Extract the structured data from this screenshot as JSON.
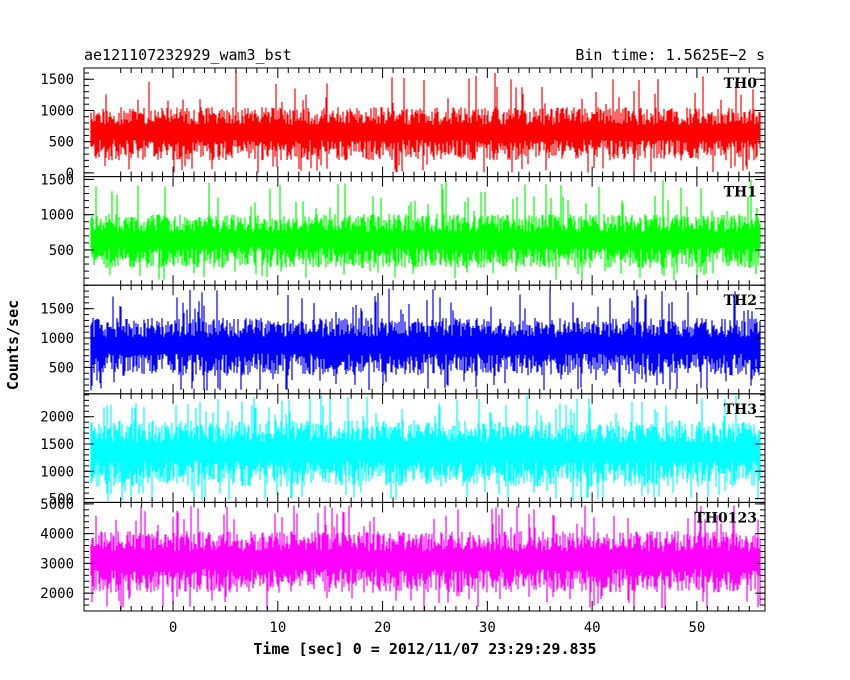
{
  "header": {
    "title": "ae121107232929_wam3_bst",
    "bin_time": "Bin time: 1.5625E−2 s"
  },
  "axes": {
    "xlabel": "Time [sec] 0 = 2012/11/07 23:29:29.835",
    "ylabel": "Counts/sec"
  },
  "chart_data": {
    "type": "line",
    "title": "ae121107232929_wam3_bst",
    "subtitle": "Bin time: 1.5625E−2 s",
    "xlabel": "Time [sec] 0 = 2012/11/07 23:29:29.835",
    "ylabel": "Counts/sec",
    "xlim": [
      -8.5,
      56.5
    ],
    "data_x_range": [
      -7.8,
      56.0
    ],
    "xticks": [
      0,
      10,
      20,
      30,
      40,
      50
    ],
    "panels": [
      {
        "name": "TH0",
        "color": "#ff0000",
        "ylim": [
          -60,
          1680
        ],
        "yticks": [
          0,
          500,
          1000,
          1500
        ],
        "typical_range": [
          150,
          1100
        ],
        "max_peak": 1650,
        "min_dip": 0
      },
      {
        "name": "TH1",
        "color": "#00ff00",
        "ylim": [
          0,
          1540
        ],
        "yticks": [
          500,
          1000,
          1500
        ],
        "typical_range": [
          200,
          1050
        ],
        "max_peak": 1500,
        "min_dip": 60
      },
      {
        "name": "TH2",
        "color": "#0000ff",
        "ylim": [
          50,
          1900
        ],
        "yticks": [
          500,
          1000,
          1500
        ],
        "typical_range": [
          300,
          1400
        ],
        "max_peak": 1850,
        "min_dip": 100
      },
      {
        "name": "TH3",
        "color": "#00ffff",
        "ylim": [
          430,
          2420
        ],
        "yticks": [
          500,
          1000,
          1500,
          2000
        ],
        "typical_range": [
          650,
          2000
        ],
        "max_peak": 2400,
        "min_dip": 450
      },
      {
        "name": "TH0123",
        "color": "#ff00ff",
        "ylim": [
          1400,
          5050
        ],
        "yticks": [
          2000,
          3000,
          4000,
          5000
        ],
        "typical_range": [
          1900,
          4200
        ],
        "max_peak": 4950,
        "min_dip": 1400
      }
    ]
  }
}
